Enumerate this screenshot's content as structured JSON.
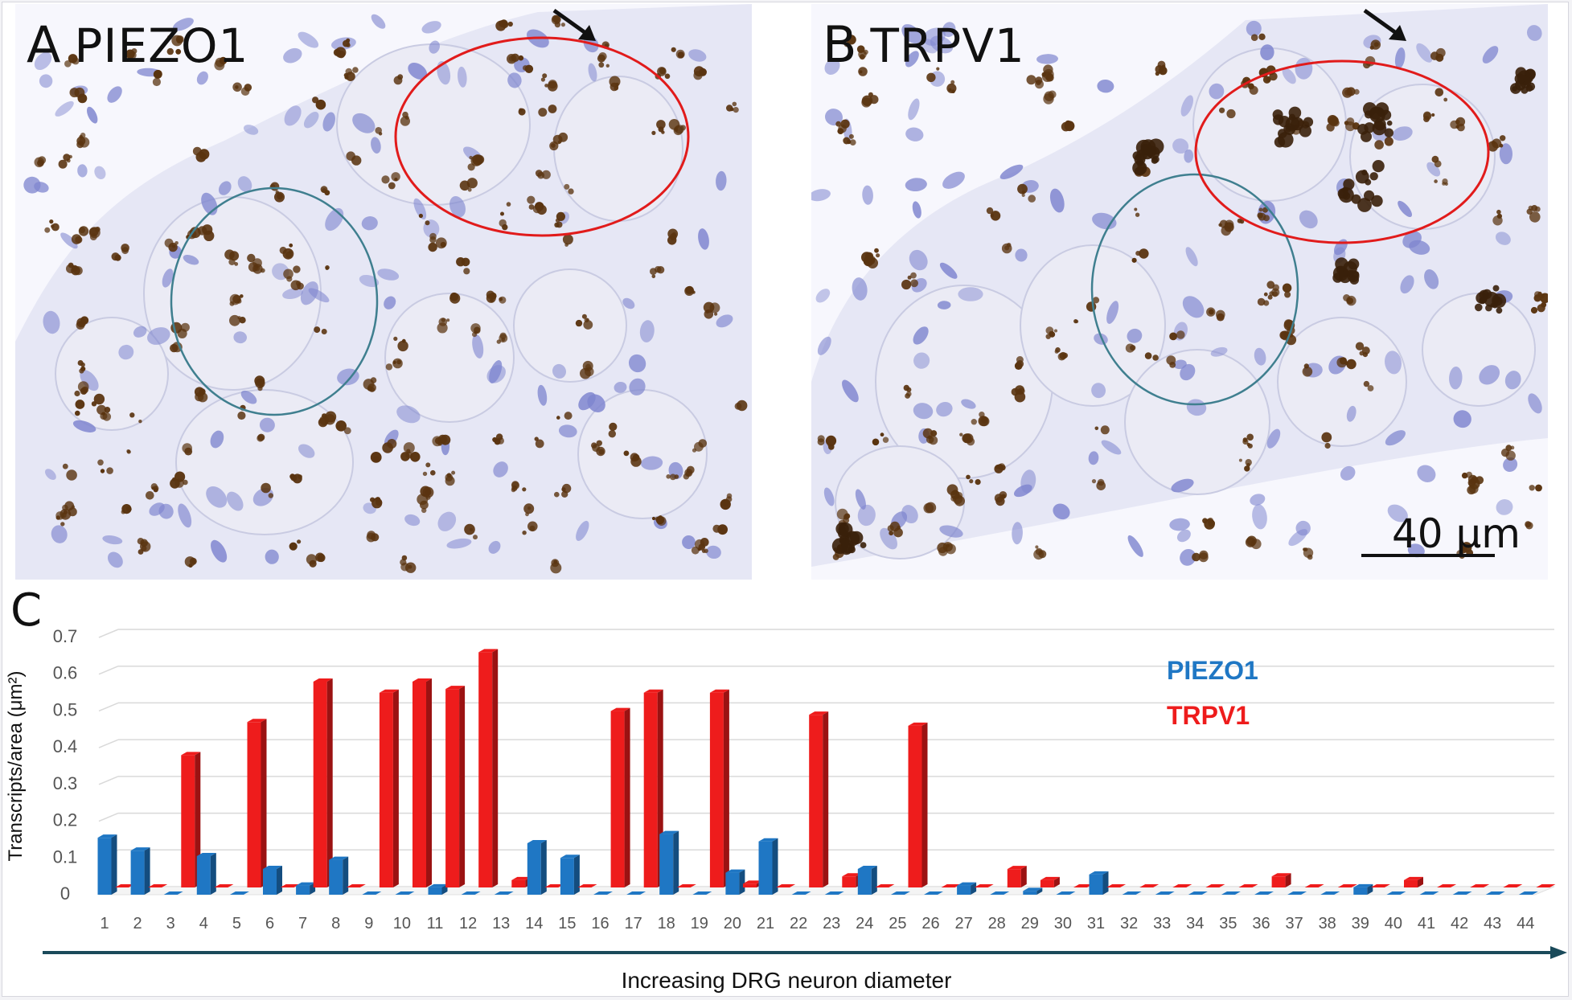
{
  "panels": [
    {
      "letter": "A",
      "gene": "PIEZO1"
    },
    {
      "letter": "B",
      "gene": "TRPV1"
    }
  ],
  "scale_bar": {
    "label": "40 μm"
  },
  "chart_letter": "C",
  "colors": {
    "piezo1": "#1f77c4",
    "trpv1": "#ee1c1c",
    "tissue": "#e6e7f5",
    "nucleus": "#7f86cf",
    "stain": "#5a3410",
    "circle_blue": "#3f7f8f",
    "circle_red": "#e11b1b"
  },
  "chart_data": {
    "type": "bar",
    "title": "",
    "xlabel": "Increasing  DRG neuron diameter",
    "ylabel": "Transcripts/area (μm²)",
    "ylim": [
      0,
      0.7
    ],
    "yticks": [
      "0",
      "0.1",
      "0.2",
      "0.3",
      "0.4",
      "0.5",
      "0.6",
      "0.7"
    ],
    "grid": true,
    "legend_position": "top-center",
    "categories": [
      "1",
      "2",
      "3",
      "4",
      "5",
      "6",
      "7",
      "8",
      "9",
      "10",
      "11",
      "12",
      "13",
      "14",
      "15",
      "16",
      "17",
      "18",
      "19",
      "20",
      "21",
      "22",
      "23",
      "24",
      "25",
      "26",
      "27",
      "28",
      "29",
      "30",
      "31",
      "32",
      "33",
      "34",
      "35",
      "36",
      "37",
      "38",
      "39",
      "40",
      "41",
      "42",
      "43",
      "44"
    ],
    "series": [
      {
        "name": "PIEZO1",
        "values": [
          0.155,
          0.12,
          0,
          0.105,
          0,
          0.07,
          0.025,
          0.095,
          0,
          0,
          0.02,
          0,
          0,
          0.14,
          0.1,
          0,
          0,
          0.165,
          0,
          0.06,
          0.145,
          0,
          0,
          0.07,
          0,
          0,
          0.025,
          0,
          0.01,
          0,
          0.055,
          0,
          0,
          0,
          0,
          0,
          0,
          0,
          0.02,
          0,
          0,
          0,
          0,
          0
        ]
      },
      {
        "name": "TRPV1",
        "values": [
          0,
          0,
          0.36,
          0,
          0.45,
          0,
          0.56,
          0,
          0.53,
          0.56,
          0.54,
          0.64,
          0.02,
          0,
          0,
          0.48,
          0.53,
          0,
          0.53,
          0.01,
          0,
          0.47,
          0.03,
          0,
          0.44,
          0,
          0,
          0.05,
          0.02,
          0,
          0,
          0,
          0,
          0,
          0,
          0.03,
          0,
          0,
          0,
          0.02,
          0,
          0,
          0,
          0
        ]
      }
    ]
  }
}
